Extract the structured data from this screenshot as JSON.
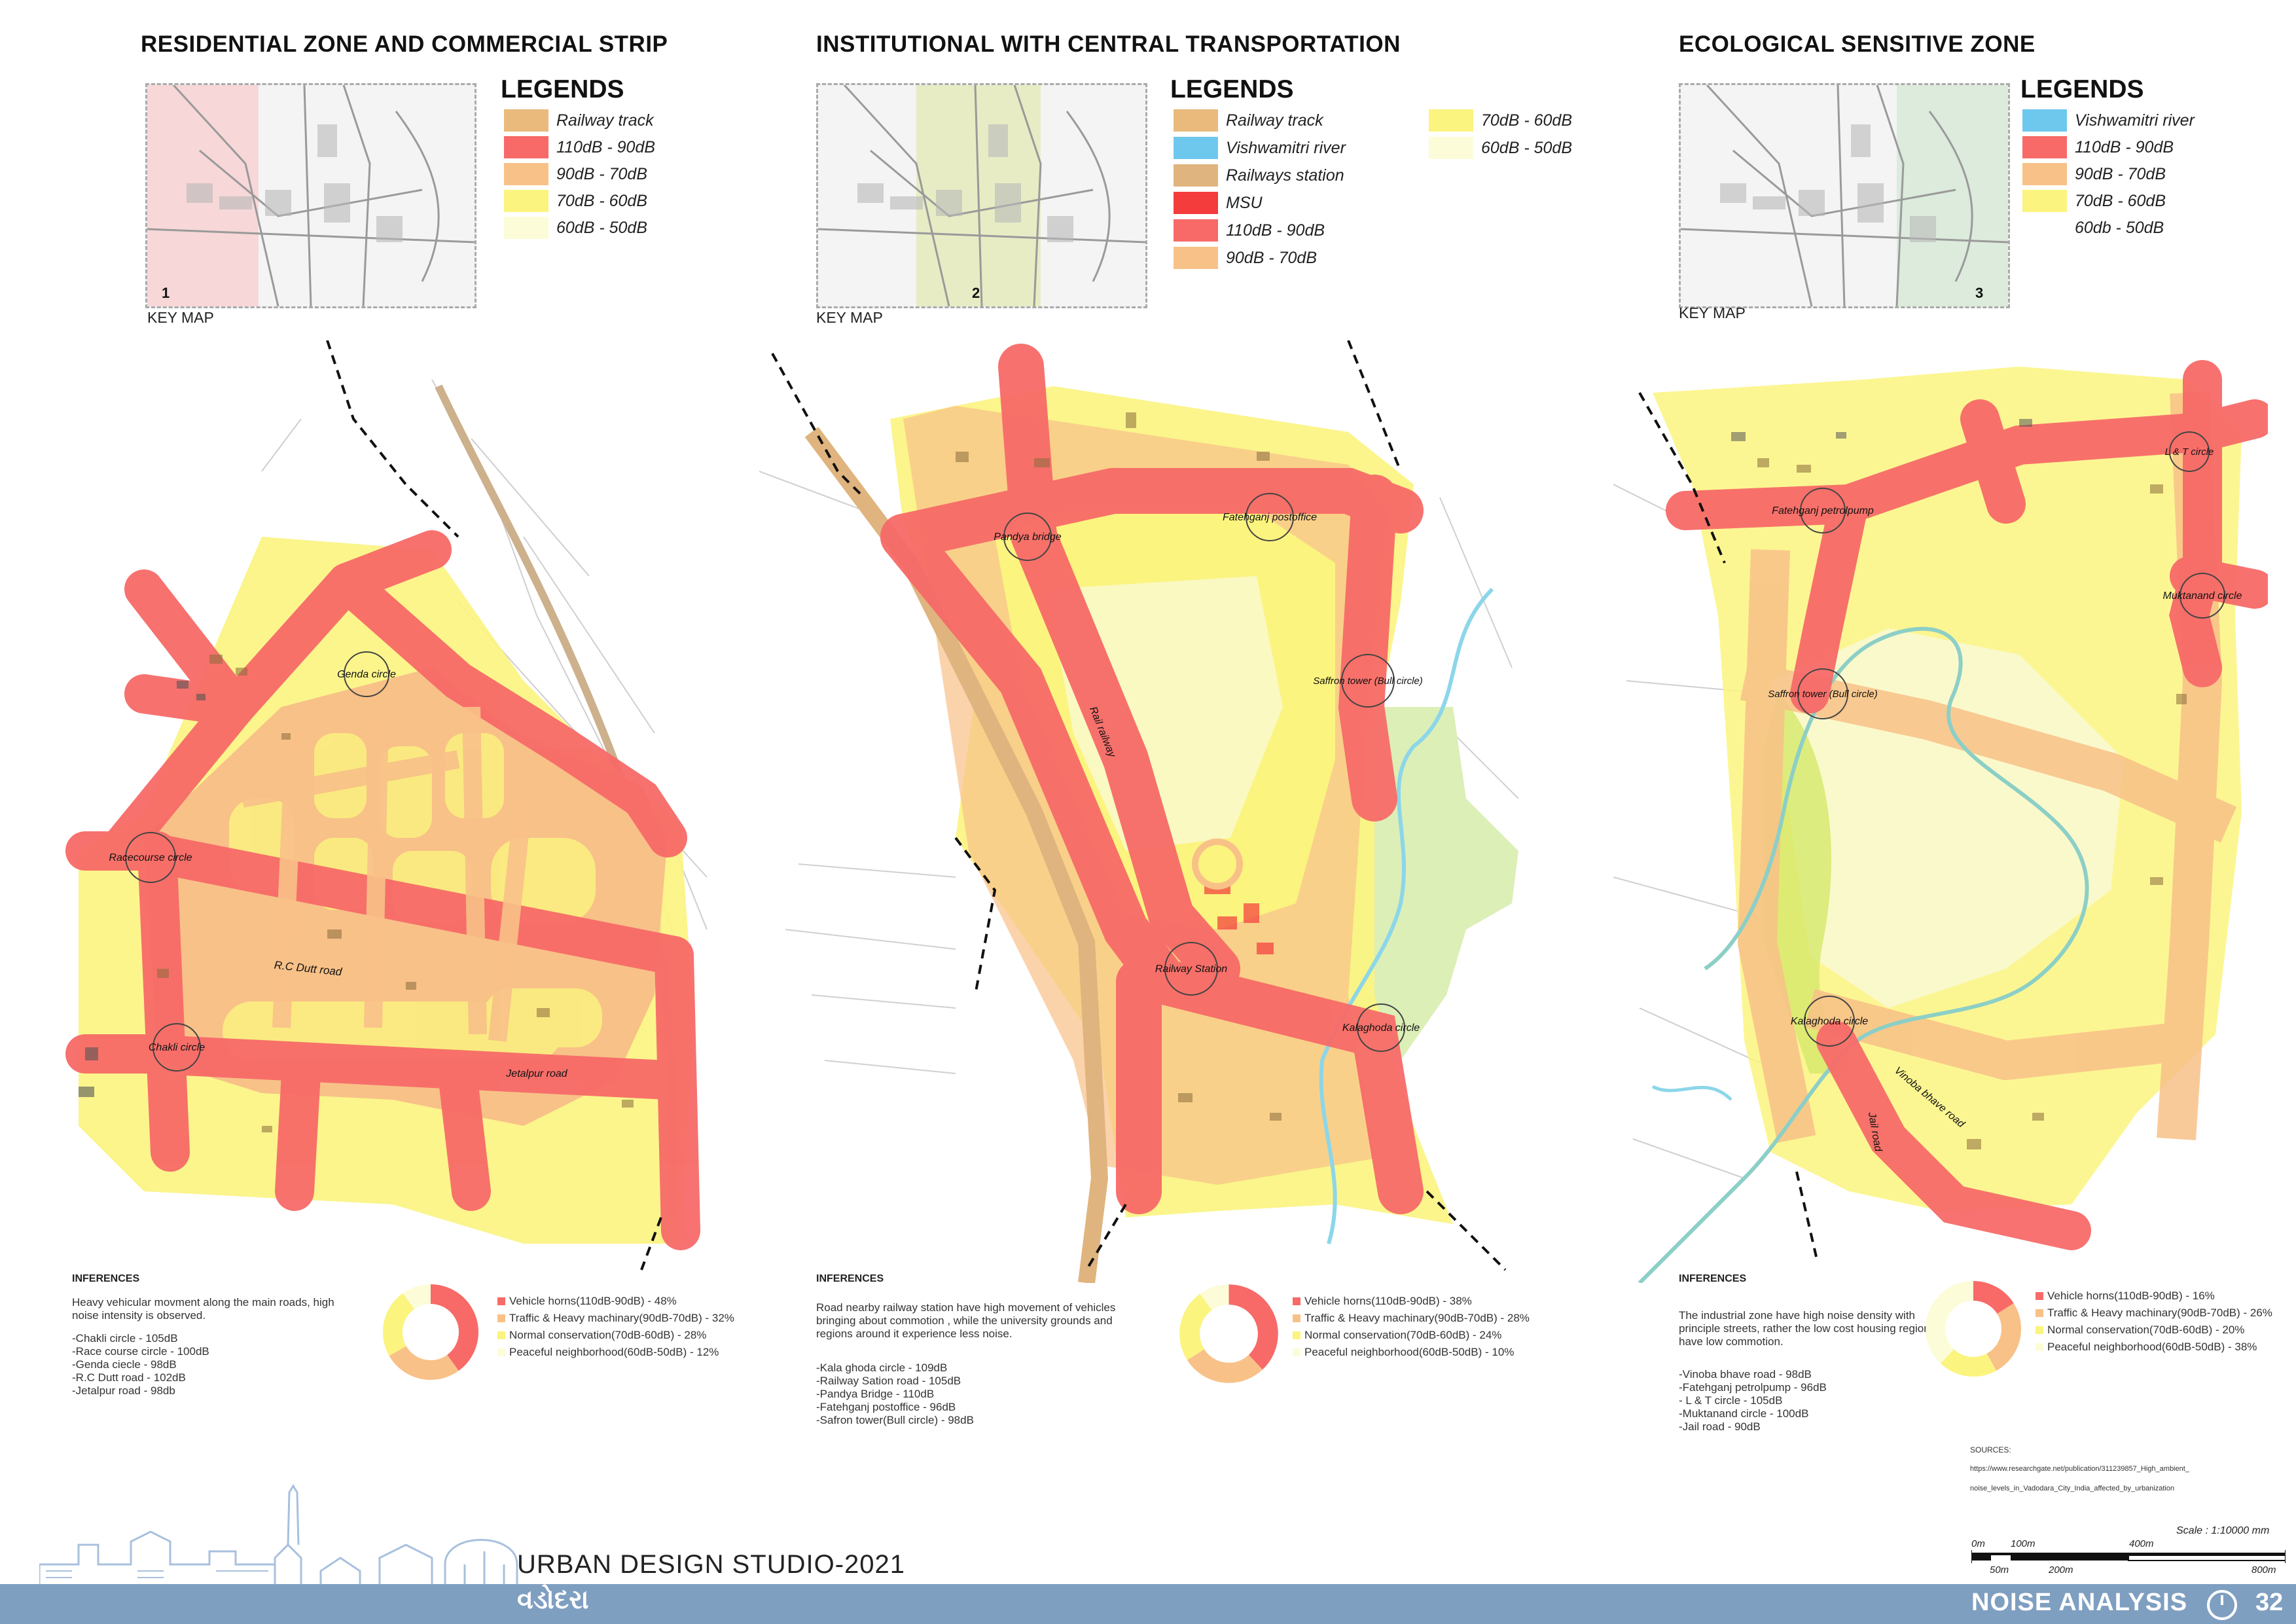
{
  "panels": [
    {
      "title": "RESIDENTIAL ZONE AND COMMERCIAL STRIP",
      "legend_title": "LEGENDS",
      "legend": [
        {
          "label": "Railway track",
          "color": "#eaba7c"
        },
        {
          "label": "110dB - 90dB",
          "color": "#f76a68"
        },
        {
          "label": "90dB - 70dB",
          "color": "#f8c188"
        },
        {
          "label": "70dB - 60dB",
          "color": "#fbf47f"
        },
        {
          "label": "60dB - 50dB",
          "color": "#fcfcd8"
        }
      ],
      "key_map_number": "1",
      "key_map_label": "KEY MAP",
      "map_labels": [
        "Genda circle",
        "Racecourse circle",
        "R.C Dutt road",
        "Chakli circle",
        "Jetalpur road"
      ],
      "inferences_title": "INFERENCES",
      "inferences_text": "Heavy vehicular movment along the main roads, high noise intensity is observed.",
      "inferences_list": [
        "-Chakli circle - 105dB",
        "-Race course circle - 100dB",
        "-Genda ciecle - 98dB",
        "-R.C Dutt road - 102dB",
        "-Jetalpur road - 98db"
      ],
      "donut": [
        {
          "label": "Vehicle horns(110dB-90dB) - 48%",
          "value": 48,
          "color": "#f76a68"
        },
        {
          "label": "Traffic & Heavy machinary(90dB-70dB) - 32%",
          "value": 32,
          "color": "#f8c188"
        },
        {
          "label": "Normal conservation(70dB-60dB) - 28%",
          "value": 28,
          "color": "#fbf47f"
        },
        {
          "label": "Peaceful neighborhood(60dB-50dB) - 12%",
          "value": 12,
          "color": "#fcfcd8"
        }
      ]
    },
    {
      "title": "INSTITUTIONAL WITH CENTRAL TRANSPORTATION",
      "legend_title": "LEGENDS",
      "legend": [
        {
          "label": "Railway track",
          "color": "#eaba7c"
        },
        {
          "label": "Vishwamitri river",
          "color": "#6ec8ee"
        },
        {
          "label": "Railways station",
          "color": "#e0b47e"
        },
        {
          "label": "MSU",
          "color": "#f43c3c"
        },
        {
          "label": "110dB - 90dB",
          "color": "#f76a68"
        },
        {
          "label": "90dB - 70dB",
          "color": "#f8c188"
        },
        {
          "label": "70dB - 60dB",
          "color": "#fbf47f"
        },
        {
          "label": "60dB - 50dB",
          "color": "#fcfcd8"
        }
      ],
      "key_map_number": "2",
      "key_map_label": "KEY MAP",
      "map_labels": [
        "Pandya bridge",
        "Fatehganj postoffice",
        "Saffron tower (Bull circle)",
        "Railway Station",
        "Kalaghoda circle",
        "Rail railway"
      ],
      "inferences_title": "INFERENCES",
      "inferences_text": "Road nearby railway station have high movement of vehicles bringing about commotion , while the university grounds and regions around it experience less noise.",
      "inferences_list": [
        "-Kala ghoda circle - 109dB",
        "-Railway Sation road - 105dB",
        "-Pandya Bridge - 110dB",
        "-Fatehganj postoffice - 96dB",
        "-Safron tower(Bull circle) - 98dB"
      ],
      "donut": [
        {
          "label": "Vehicle horns(110dB-90dB) - 38%",
          "value": 38,
          "color": "#f76a68"
        },
        {
          "label": "Traffic & Heavy machinary(90dB-70dB) - 28%",
          "value": 28,
          "color": "#f8c188"
        },
        {
          "label": "Normal conservation(70dB-60dB) - 24%",
          "value": 24,
          "color": "#fbf47f"
        },
        {
          "label": "Peaceful neighborhood(60dB-50dB) - 10%",
          "value": 10,
          "color": "#fcfcd8"
        }
      ]
    },
    {
      "title": "ECOLOGICAL SENSITIVE ZONE",
      "legend_title": "LEGENDS",
      "legend": [
        {
          "label": "Vishwamitri river",
          "color": "#6ec8ee"
        },
        {
          "label": "110dB - 90dB",
          "color": "#f76a68"
        },
        {
          "label": "90dB - 70dB",
          "color": "#f8c188"
        },
        {
          "label": "70dB - 60dB",
          "color": "#fbf47f"
        },
        {
          "label": "60db - 50dB",
          "color": "#ffffff"
        }
      ],
      "key_map_number": "3",
      "key_map_label": "KEY MAP",
      "map_labels": [
        "Fatehganj petrolpump",
        "L & T circle",
        "Muktanand circle",
        "Saffron tower (Bull circle)",
        "Kalaghoda circle",
        "Vinoba bhave road",
        "Jail road"
      ],
      "inferences_title": "INFERENCES",
      "inferences_text": "The industrial zone have high noise density with principle streets, rather the low cost housing region have low commotion.",
      "inferences_list": [
        "-Vinoba bhave road - 98dB",
        "-Fatehganj petrolpump - 96dB",
        "- L & T circle - 105dB",
        "-Muktanand circle - 100dB",
        "-Jail road - 90dB"
      ],
      "donut": [
        {
          "label": "Vehicle horns(110dB-90dB) - 16%",
          "value": 16,
          "color": "#f76a68"
        },
        {
          "label": "Traffic & Heavy machinary(90dB-70dB) - 26%",
          "value": 26,
          "color": "#f8c188"
        },
        {
          "label": "Normal conservation(70dB-60dB) - 20%",
          "value": 20,
          "color": "#fbf47f"
        },
        {
          "label": "Peaceful neighborhood(60dB-50dB) - 38%",
          "value": 38,
          "color": "#fcfcd8"
        }
      ]
    }
  ],
  "sources": {
    "title": "SOURCES:",
    "line1": "https://www.researchgate.net/publication/311239857_High_ambient_",
    "line2": "noise_levels_in_Vadodara_City_India_affected_by_urbanization"
  },
  "scale": {
    "label": "Scale :   1:10000 mm",
    "ticks_top": [
      "0m",
      "100m",
      "400m"
    ],
    "ticks_bottom": [
      "50m",
      "200m",
      "800m"
    ]
  },
  "footer": {
    "studio": "URBAN DESIGN STUDIO-2021",
    "city": "વડોદરા",
    "section": "NOISE ANALYSIS",
    "page": "32"
  }
}
